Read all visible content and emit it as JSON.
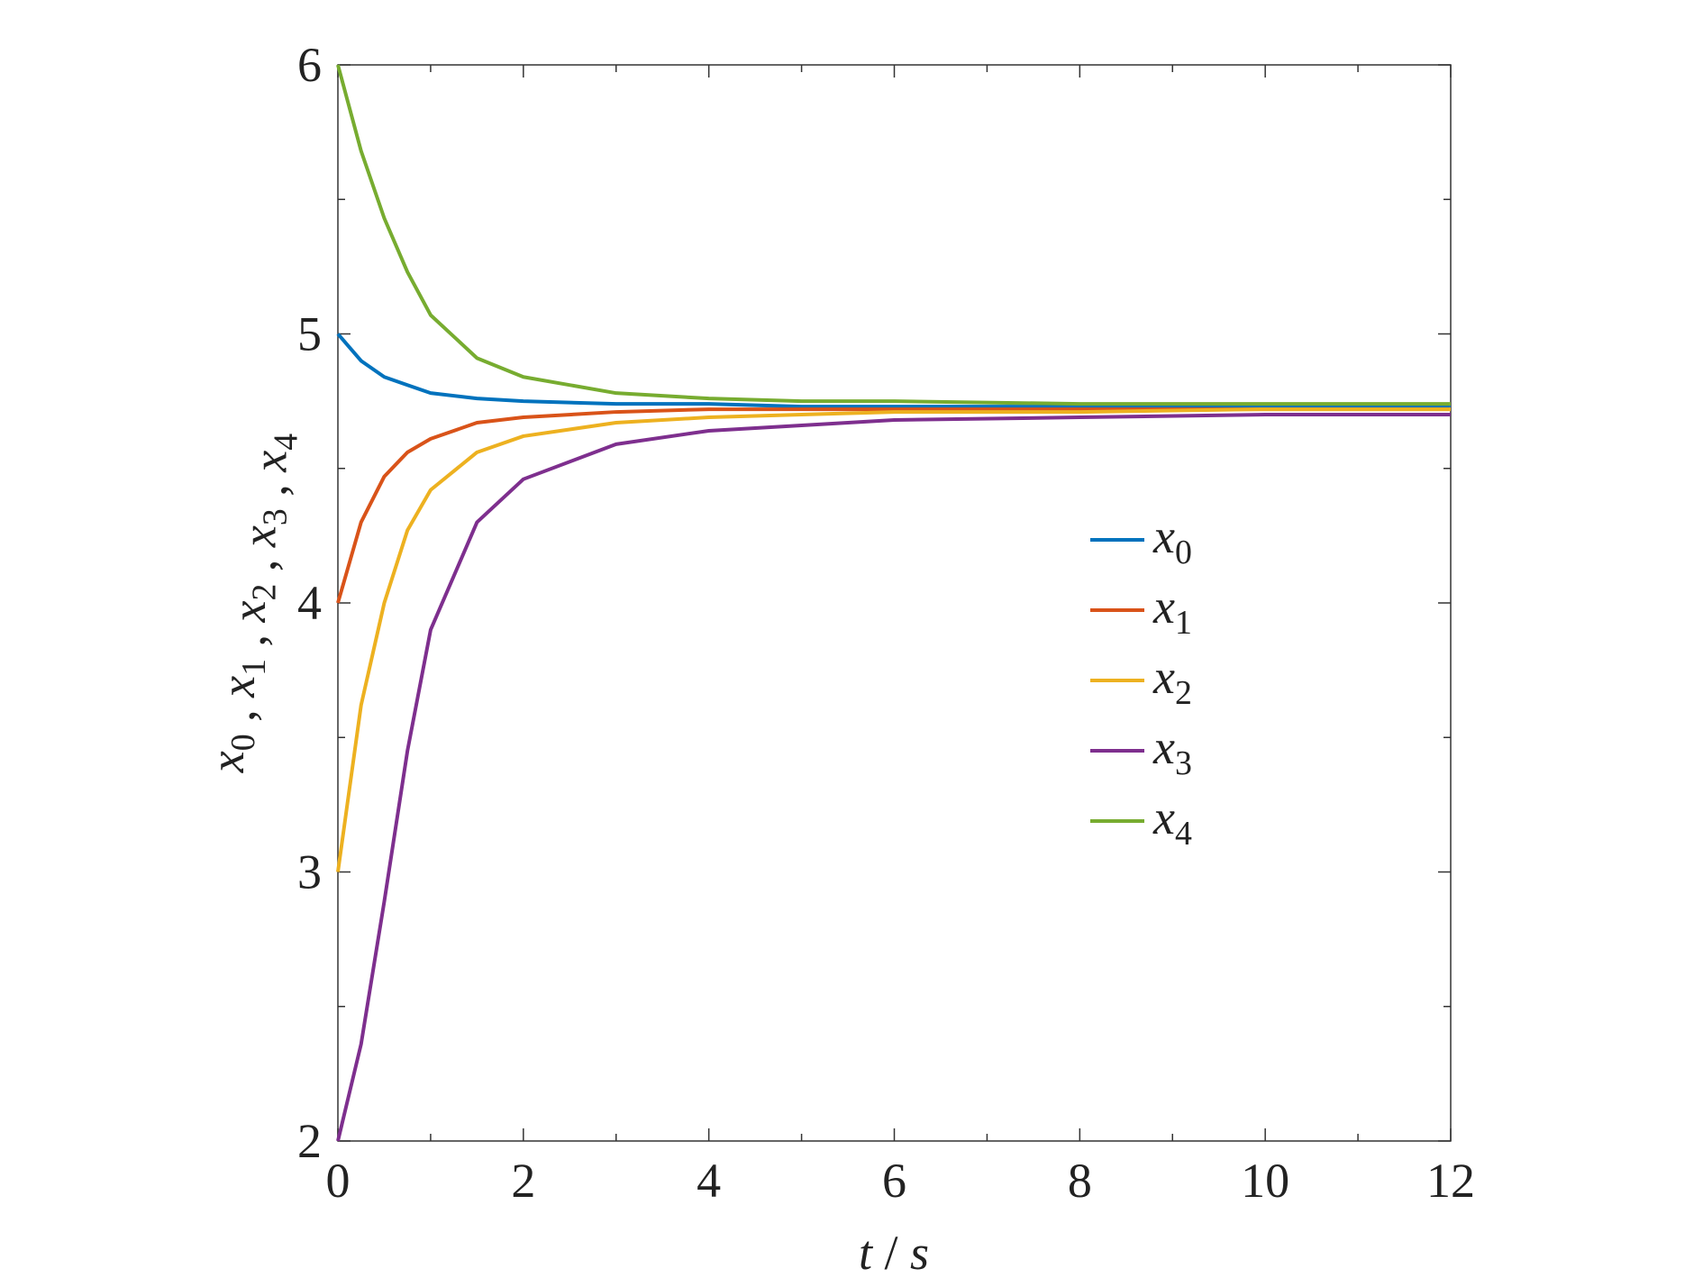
{
  "chart_data": {
    "type": "line",
    "xlabel": "t / s",
    "ylabel": "x0 , x1 , x2 , x3 , x4",
    "x": [
      0,
      0.25,
      0.5,
      0.75,
      1,
      1.5,
      2,
      3,
      4,
      5,
      6,
      8,
      10,
      12
    ],
    "series": [
      {
        "name": "x0",
        "color": "#0072bd",
        "values": [
          5,
          4.9,
          4.84,
          4.81,
          4.78,
          4.76,
          4.75,
          4.74,
          4.74,
          4.73,
          4.73,
          4.73,
          4.73,
          4.73
        ]
      },
      {
        "name": "x1",
        "color": "#d95319",
        "values": [
          4,
          4.3,
          4.47,
          4.56,
          4.61,
          4.67,
          4.69,
          4.71,
          4.72,
          4.72,
          4.72,
          4.72,
          4.72,
          4.72
        ]
      },
      {
        "name": "x2",
        "color": "#edb120",
        "values": [
          3,
          3.62,
          4.0,
          4.27,
          4.42,
          4.56,
          4.62,
          4.67,
          4.69,
          4.7,
          4.71,
          4.71,
          4.72,
          4.72
        ]
      },
      {
        "name": "x3",
        "color": "#7e2f8e",
        "values": [
          2,
          2.36,
          2.89,
          3.45,
          3.9,
          4.3,
          4.46,
          4.59,
          4.64,
          4.66,
          4.68,
          4.69,
          4.7,
          4.7
        ]
      },
      {
        "name": "x4",
        "color": "#77ac30",
        "values": [
          6,
          5.68,
          5.43,
          5.23,
          5.07,
          4.91,
          4.84,
          4.78,
          4.76,
          4.75,
          4.75,
          4.74,
          4.74,
          4.74
        ]
      }
    ],
    "xlim": [
      0,
      12
    ],
    "ylim": [
      2,
      6
    ],
    "xticks": [
      0,
      2,
      4,
      6,
      8,
      10,
      12
    ],
    "yticks": [
      2,
      3,
      4,
      5,
      6
    ],
    "xminorticks": [
      1,
      3,
      5,
      7,
      9,
      11
    ],
    "yminorticks": [
      2.5,
      3.5,
      4.5,
      5.5
    ],
    "legend": "center right",
    "grid": false
  }
}
